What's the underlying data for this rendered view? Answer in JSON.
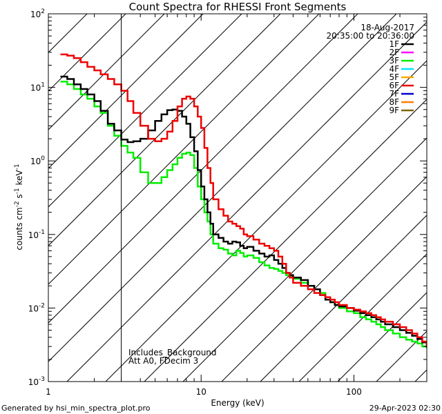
{
  "chart_data": {
    "type": "line",
    "title": "Count Spectra for RHESSI Front Segments",
    "xlabel": "Energy (keV)",
    "ylabel_parts": {
      "base": "counts cm",
      "exp1": "-2",
      "mid1": " s",
      "exp2": "-1",
      "mid2": " keV",
      "exp3": "-1"
    },
    "xscale": "log",
    "yscale": "log",
    "xlim": [
      1,
      300
    ],
    "ylim": [
      0.001,
      100
    ],
    "x_ticks": [
      {
        "value": 1,
        "label": "1"
      },
      {
        "value": 10,
        "label": "10"
      },
      {
        "value": 100,
        "label": "100"
      }
    ],
    "y_ticks": [
      {
        "value": 0.001,
        "base": "10",
        "exp": "-3"
      },
      {
        "value": 0.01,
        "base": "10",
        "exp": "-2"
      },
      {
        "value": 0.1,
        "base": "10",
        "exp": "-1"
      },
      {
        "value": 1,
        "base": "10",
        "exp": "0"
      },
      {
        "value": 10,
        "base": "10",
        "exp": "1"
      },
      {
        "value": 100,
        "base": "10",
        "exp": "2"
      }
    ],
    "date": "18-Aug-2017",
    "time_range": "20:35:00 to 20:36:00",
    "hatched_below_keV": 3,
    "annotations": [
      "Includes_Background",
      "Att A0, FDecim 3"
    ],
    "legend": [
      {
        "name": "1F",
        "color": "#000000"
      },
      {
        "name": "2F",
        "color": "#ff00ff"
      },
      {
        "name": "3F",
        "color": "#00ee00"
      },
      {
        "name": "4F",
        "color": "#00e5ff"
      },
      {
        "name": "5F",
        "color": "#ffaa00"
      },
      {
        "name": "6F",
        "color": "#ee0000"
      },
      {
        "name": "7F",
        "color": "#0000cc"
      },
      {
        "name": "8F",
        "color": "#ff7f00"
      },
      {
        "name": "9F",
        "color": "#806600"
      }
    ],
    "series": [
      {
        "name": "3F",
        "color": "#00ee00",
        "x": [
          1.2,
          1.33,
          1.47,
          1.63,
          1.8,
          2.0,
          2.2,
          2.45,
          2.7,
          3.0,
          3.3,
          3.6,
          4.0,
          4.5,
          5.0,
          5.5,
          6.0,
          6.5,
          7.0,
          7.5,
          8.0,
          8.5,
          9.0,
          9.5,
          10.0,
          10.5,
          11.0,
          11.5,
          12,
          13,
          14,
          15,
          16,
          17,
          18,
          19,
          20,
          22,
          24,
          26,
          28,
          30,
          32,
          34,
          36,
          38,
          40,
          45,
          50,
          55,
          60,
          65,
          70,
          75,
          80,
          90,
          100,
          110,
          120,
          130,
          140,
          150,
          160,
          180,
          200,
          220,
          240,
          260,
          280,
          300
        ],
        "y": [
          12,
          11,
          9.5,
          8,
          7,
          5.5,
          4.5,
          3,
          2.2,
          1.6,
          1.3,
          1.1,
          0.7,
          0.5,
          0.5,
          0.6,
          0.75,
          0.9,
          1.1,
          1.25,
          1.3,
          1.2,
          0.8,
          0.45,
          0.3,
          0.2,
          0.15,
          0.1,
          0.075,
          0.065,
          0.062,
          0.055,
          0.052,
          0.06,
          0.056,
          0.05,
          0.052,
          0.048,
          0.042,
          0.038,
          0.035,
          0.034,
          0.032,
          0.03,
          0.028,
          0.027,
          0.025,
          0.022,
          0.02,
          0.018,
          0.016,
          0.014,
          0.012,
          0.011,
          0.01,
          0.009,
          0.0085,
          0.0075,
          0.007,
          0.0065,
          0.006,
          0.0055,
          0.005,
          0.0045,
          0.004,
          0.0037,
          0.0035,
          0.0033,
          0.003,
          0.0029
        ]
      },
      {
        "name": "1F",
        "color": "#000000",
        "x": [
          1.2,
          1.33,
          1.47,
          1.63,
          1.8,
          2.0,
          2.2,
          2.45,
          2.7,
          3.0,
          3.3,
          3.6,
          4.0,
          4.5,
          5.0,
          5.5,
          6.0,
          6.5,
          7.0,
          7.5,
          8.0,
          8.5,
          9.0,
          9.5,
          10.0,
          10.5,
          11.0,
          11.5,
          12,
          13,
          14,
          15,
          16,
          17,
          18,
          19,
          20,
          22,
          24,
          26,
          28,
          30,
          32,
          34,
          36,
          38,
          40,
          45,
          50,
          55,
          60,
          65,
          70,
          75,
          80,
          90,
          100,
          110,
          120,
          130,
          140,
          150,
          160,
          180,
          200,
          220,
          240,
          260,
          280,
          300
        ],
        "y": [
          14,
          13,
          11,
          9.5,
          8,
          6.5,
          4.8,
          3.2,
          2.6,
          1.95,
          1.8,
          1.85,
          2.0,
          2.6,
          3.5,
          4.3,
          4.9,
          5.0,
          4.8,
          4.0,
          3.2,
          2.1,
          1.35,
          0.75,
          0.45,
          0.3,
          0.2,
          0.14,
          0.1,
          0.09,
          0.08,
          0.075,
          0.08,
          0.078,
          0.07,
          0.065,
          0.068,
          0.06,
          0.055,
          0.05,
          0.052,
          0.045,
          0.04,
          0.035,
          0.03,
          0.028,
          0.026,
          0.024,
          0.02,
          0.018,
          0.015,
          0.013,
          0.012,
          0.011,
          0.0105,
          0.01,
          0.0092,
          0.0085,
          0.008,
          0.0075,
          0.007,
          0.0065,
          0.006,
          0.0055,
          0.005,
          0.0046,
          0.0042,
          0.0038,
          0.0034,
          0.003
        ]
      },
      {
        "name": "6F",
        "color": "#ee0000",
        "x": [
          1.2,
          1.33,
          1.47,
          1.63,
          1.8,
          2.0,
          2.2,
          2.45,
          2.7,
          3.0,
          3.3,
          3.6,
          4.0,
          4.5,
          5.0,
          5.5,
          6.0,
          6.5,
          7.0,
          7.5,
          8.0,
          8.5,
          9.0,
          9.5,
          10.0,
          10.5,
          11.0,
          11.5,
          12,
          13,
          14,
          15,
          16,
          17,
          18,
          19,
          20,
          22,
          24,
          26,
          28,
          30,
          32,
          34,
          36,
          38,
          40,
          45,
          50,
          55,
          60,
          65,
          70,
          75,
          80,
          90,
          100,
          110,
          120,
          130,
          140,
          150,
          160,
          180,
          200,
          220,
          240,
          260,
          280,
          300
        ],
        "y": [
          28,
          27,
          25,
          22,
          19,
          17,
          15,
          13,
          11,
          9.0,
          6.5,
          4.5,
          3.0,
          2.0,
          1.85,
          2.0,
          2.5,
          3.5,
          5.5,
          7.0,
          7.5,
          7.0,
          5.5,
          4.0,
          2.8,
          1.5,
          0.8,
          0.5,
          0.3,
          0.22,
          0.18,
          0.15,
          0.14,
          0.13,
          0.12,
          0.1,
          0.095,
          0.085,
          0.075,
          0.07,
          0.065,
          0.06,
          0.05,
          0.04,
          0.03,
          0.026,
          0.022,
          0.02,
          0.018,
          0.016,
          0.015,
          0.014,
          0.013,
          0.012,
          0.011,
          0.01,
          0.0095,
          0.009,
          0.0085,
          0.008,
          0.0075,
          0.007,
          0.0065,
          0.006,
          0.0055,
          0.005,
          0.0045,
          0.004,
          0.0035,
          0.003
        ]
      }
    ]
  },
  "footer": {
    "generated_by": "Generated by hsi_min_spectra_plot.pro",
    "timestamp": "29-Apr-2023 02:30"
  }
}
